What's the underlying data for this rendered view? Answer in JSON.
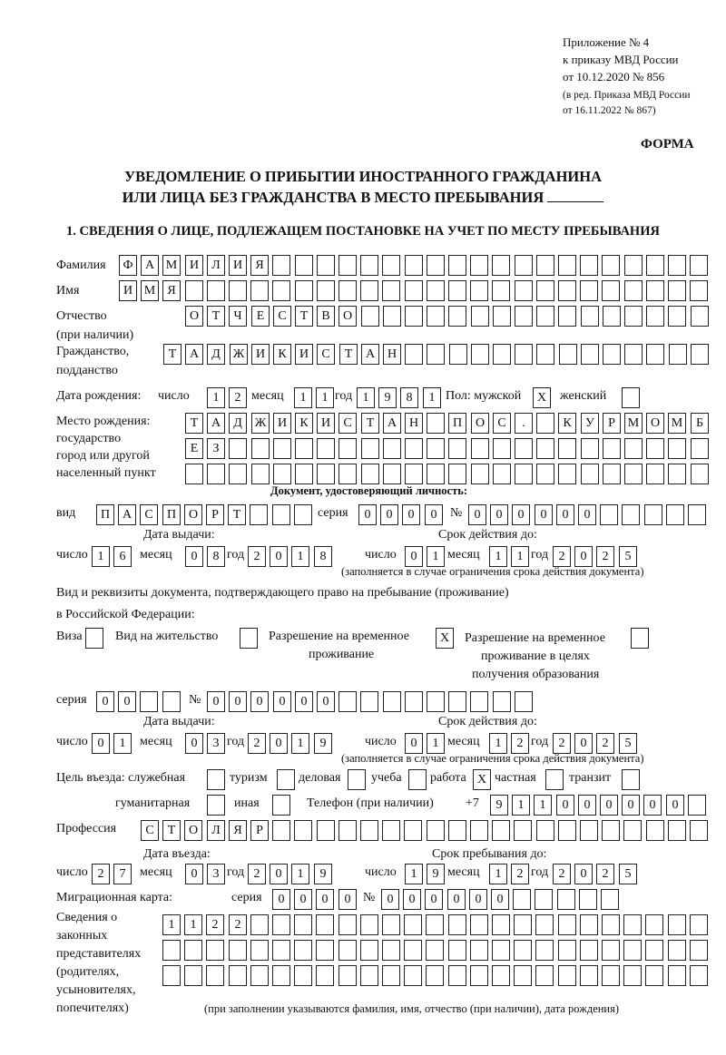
{
  "header": {
    "line1": "Приложение № 4",
    "line2": "к приказу МВД России",
    "line3": "от 10.12.2020 № 856",
    "line4": "(в ред. Приказа МВД России",
    "line5": "от 16.11.2022 № 867)",
    "form_label": "ФОРМА"
  },
  "title": {
    "line1": "УВЕДОМЛЕНИЕ О ПРИБЫТИИ ИНОСТРАННОГО ГРАЖДАНИНА",
    "line2": "ИЛИ ЛИЦА БЕЗ ГРАЖДАНСТВА В МЕСТО ПРЕБЫВАНИЯ"
  },
  "section1": {
    "heading": "1. СВЕДЕНИЯ О ЛИЦЕ, ПОДЛЕЖАЩЕМ ПОСТАНОВКЕ НА УЧЕТ ПО МЕСТУ ПРЕБЫВАНИЯ",
    "labels": {
      "surname": "Фамилия",
      "name": "Имя",
      "patronymic": "Отчество",
      "patronymic_note": "(при наличии)",
      "citizenship": "Гражданство,",
      "citizenship2": "подданство",
      "birth_date": "Дата рождения:",
      "day": "число",
      "month": "месяц",
      "year": "год",
      "sex": "Пол: мужской",
      "female": "женский",
      "birthplace1": "Место рождения:",
      "birthplace2": "государство",
      "birthplace3": "город или другой",
      "birthplace4": "населенный пункт",
      "id_doc": "Документ, удостоверяющий личность:",
      "kind": "вид",
      "series": "серия",
      "number": "№",
      "issue_date": "Дата выдачи:",
      "valid_until": "Срок действия до:",
      "validity_note": "(заполняется в случае ограничения срока действия документа)",
      "stay_doc1": "Вид и реквизиты документа, подтверждающего право на пребывание (проживание)",
      "stay_doc2": "в Российской Федерации:",
      "visa": "Виза",
      "residence": "Вид на жительство",
      "temp_res1": "Разрешение на временное",
      "temp_res2": "проживание",
      "temp_edu1": "Разрешение на временное",
      "temp_edu2": "проживание в целях",
      "temp_edu3": "получения образования",
      "purpose": "Цель въезда: служебная",
      "tourism": "туризм",
      "business": "деловая",
      "study": "учеба",
      "work": "работа",
      "private": "частная",
      "transit": "транзит",
      "humanitarian": "гуманитарная",
      "other": "иная",
      "phone": "Телефон (при наличии)",
      "phone_prefix": "+7",
      "profession": "Профессия",
      "entry_date": "Дата въезда:",
      "stay_until": "Срок пребывания до:",
      "migration_card": "Миграционная карта:",
      "rep1": "Сведения о",
      "rep2": "законных",
      "rep3": "представителях",
      "rep4": "(родителях,",
      "rep5": "усыновителях,",
      "rep6": "попечителях)",
      "rep_note": "(при заполнении указываются фамилия, имя, отчество (при наличии), дата рождения)"
    },
    "values": {
      "surname": "ФАМИЛИЯ",
      "name": "ИМЯ",
      "patronymic": "ОТЧЕСТВО",
      "citizenship": "ТАДЖИКИСТАН",
      "birth_day": "12",
      "birth_month": "11",
      "birth_year": "1981",
      "sex_male": "X",
      "sex_female": "",
      "birthplace_1": "ТАДЖИКИСТАН ПОС. КУРМОМБ",
      "birthplace_2": "ЕЗ",
      "birthplace_3": "",
      "id_kind": "ПАСПОРТ",
      "id_series": "0000",
      "id_number": "000000",
      "id_issue_day": "16",
      "id_issue_month": "08",
      "id_issue_year": "2018",
      "id_valid_day": "01",
      "id_valid_month": "11",
      "id_valid_year": "2025",
      "visa": "",
      "residence_permit": "",
      "temp_residence": "X",
      "temp_residence_edu": "",
      "stay_series": "00",
      "stay_number": "000000",
      "stay_issue_day": "01",
      "stay_issue_month": "03",
      "stay_issue_year": "2019",
      "stay_valid_day": "01",
      "stay_valid_month": "12",
      "stay_valid_year": "2025",
      "purpose_official": "",
      "purpose_tourism": "",
      "purpose_business": "",
      "purpose_study": "",
      "purpose_work": "X",
      "purpose_private": "",
      "purpose_transit": "",
      "purpose_humanitarian": "",
      "purpose_other": "",
      "phone": "911000000",
      "profession": "СТОЛЯР",
      "entry_day": "27",
      "entry_month": "03",
      "entry_year": "2019",
      "stay_until_day": "19",
      "stay_until_month": "12",
      "stay_until_year": "2025",
      "mig_series": "0000",
      "mig_number": "000000",
      "rep_1": "1122",
      "rep_2": "",
      "rep_3": ""
    }
  }
}
